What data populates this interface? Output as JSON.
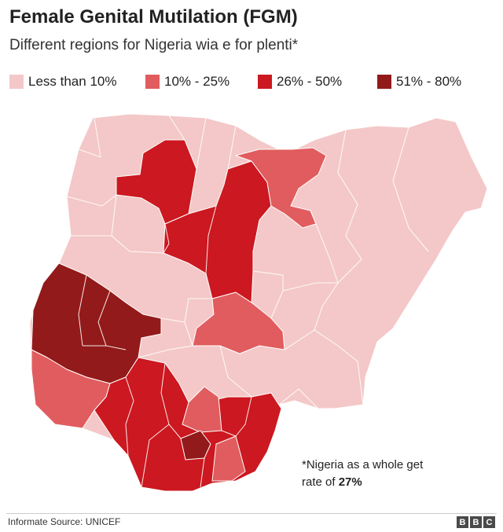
{
  "header": {
    "title": "Female Genital Mutilation (FGM)",
    "subtitle": "Different regions for Nigeria wia e for plenti*"
  },
  "legend": [
    {
      "label": "Less than 10%",
      "color": "#f4c8c8"
    },
    {
      "label": "10% - 25%",
      "color": "#e15c5e"
    },
    {
      "label": "26% - 50%",
      "color": "#cc1820"
    },
    {
      "label": "51% - 80%",
      "color": "#931a1a"
    }
  ],
  "note": {
    "line1": "*Nigeria as a whole get",
    "prefix": "rate of ",
    "value": "27%"
  },
  "footer": {
    "source": "Informate Source: UNICEF",
    "logo": [
      "B",
      "B",
      "C"
    ]
  }
}
